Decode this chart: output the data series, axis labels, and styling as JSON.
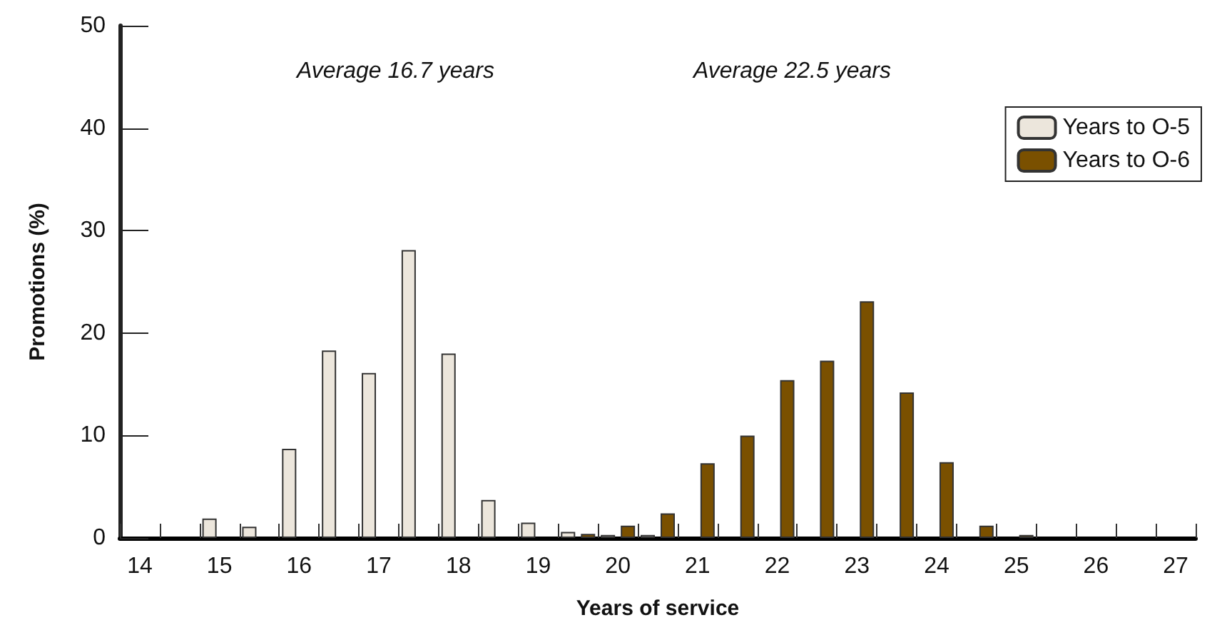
{
  "chart_data": {
    "type": "bar",
    "xlabel": "Years of service",
    "ylabel": "Promotions (%)",
    "categories": [
      "14",
      null,
      "15",
      null,
      "16",
      null,
      "17",
      null,
      "18",
      null,
      "19",
      null,
      "20",
      null,
      "21",
      null,
      "22",
      null,
      "23",
      null,
      "24",
      null,
      "25",
      null,
      "26",
      null,
      "27"
    ],
    "series": [
      {
        "name": "Years to O-5",
        "color": "#ece6dc",
        "values": [
          null,
          null,
          1.9,
          1.1,
          8.7,
          18.3,
          16.1,
          28.1,
          18.0,
          3.7,
          1.5,
          0.6,
          0.3,
          0.3,
          null,
          null,
          null,
          null,
          null,
          null,
          null,
          null,
          null,
          null,
          null,
          null,
          null
        ]
      },
      {
        "name": "Years to O-6",
        "color": "#7a5000",
        "values": [
          null,
          null,
          null,
          null,
          null,
          null,
          null,
          null,
          null,
          null,
          null,
          0.4,
          1.2,
          2.4,
          7.3,
          10.0,
          15.4,
          17.3,
          23.1,
          14.2,
          7.4,
          1.2,
          0.3,
          null,
          null,
          null,
          null
        ]
      }
    ],
    "ylim": [
      0,
      50
    ],
    "yticks": [
      0,
      10,
      20,
      30,
      40,
      50
    ],
    "grid": false,
    "legend": "top right",
    "annotations": [
      "Average 16.7 years",
      "Average 22.5 years"
    ]
  }
}
